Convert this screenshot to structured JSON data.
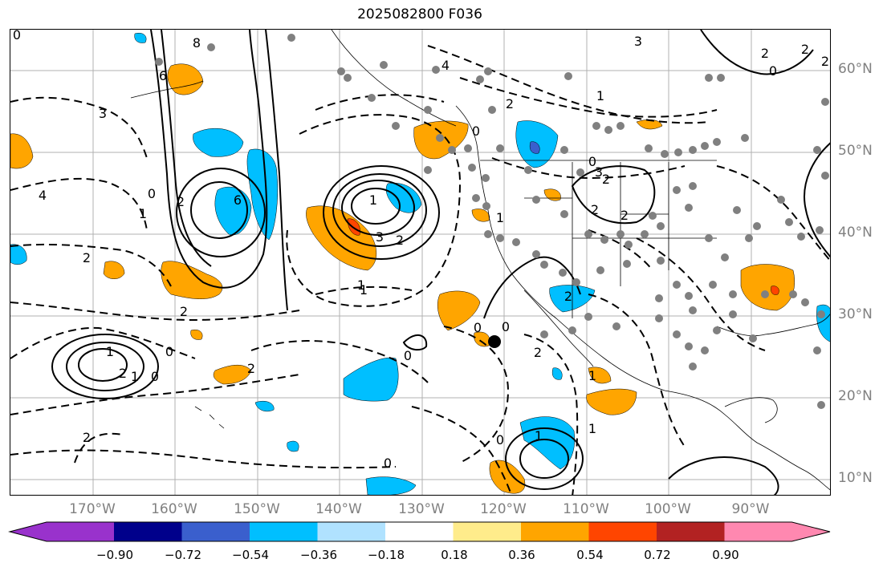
{
  "title": "2025082800 F036",
  "lon_labels": [
    "170°W",
    "160°W",
    "150°W",
    "140°W",
    "130°W",
    "120°W",
    "110°W",
    "100°W",
    "90°W"
  ],
  "lat_labels": [
    "60°N",
    "50°N",
    "40°N",
    "30°N",
    "20°N",
    "10°N"
  ],
  "colorbar": {
    "colors": [
      "#9932CC",
      "#00008B",
      "#3A5FCD",
      "#00BFFF",
      "#B0E2FF",
      "#FFFFFF",
      "#FFEC8B",
      "#FFA500",
      "#FF4500",
      "#B22222",
      "#FF88B0"
    ],
    "tick_labels": [
      "−0.90",
      "−0.72",
      "−0.54",
      "−0.36",
      "−0.18",
      "0.18",
      "0.36",
      "0.54",
      "0.72",
      "0.90"
    ]
  },
  "contour_labels": [
    "0",
    "8",
    "6",
    "4",
    "3",
    "2",
    "1",
    "6",
    "2",
    "3",
    "2",
    "1",
    "2",
    "0",
    "1",
    "2",
    "1",
    "0",
    "4",
    "2",
    "1",
    "0",
    "2",
    "3",
    "0",
    "2",
    "1",
    "2",
    "1",
    "2",
    "0",
    "2",
    "1",
    "0",
    "0",
    "1",
    "1",
    "2",
    "0",
    "0",
    "2",
    "0",
    "1",
    "3",
    "2",
    "0",
    "2",
    "2"
  ],
  "colors": {
    "gray_dot": "#808080",
    "frame": "#000000",
    "grid": "#b0b0b0",
    "label_gray": "#808080"
  }
}
